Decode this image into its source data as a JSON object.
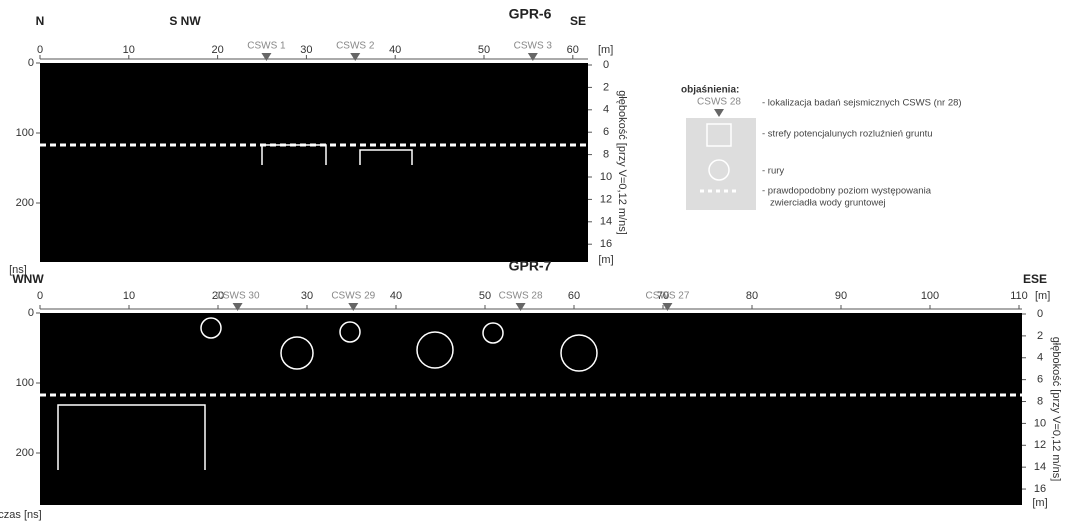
{
  "panels": [
    {
      "title": "GPR-6",
      "left_label": "N",
      "mid_label": "S NW",
      "right_label": "SE",
      "xticks": [
        0,
        10,
        20,
        30,
        40,
        50,
        60
      ],
      "x_unit": "[m]",
      "time_ticks": [
        0,
        100,
        200
      ],
      "time_unit": "[ns]",
      "depth_ticks": [
        0,
        2,
        4,
        6,
        8,
        10,
        12,
        14,
        16
      ],
      "depth_unit": "[m]",
      "depth_label": "głębokość [przy V=0,12 m/ns]",
      "csws": [
        {
          "label": "CSWS 1",
          "x": 25.5
        },
        {
          "label": "CSWS 2",
          "x": 35.5
        },
        {
          "label": "CSWS 3",
          "x": 55.5
        }
      ]
    },
    {
      "title": "GPR-7",
      "left_label": "WNW",
      "right_label": "ESE",
      "xticks": [
        0,
        10,
        20,
        30,
        40,
        50,
        60,
        70,
        80,
        90,
        100,
        110
      ],
      "x_unit": "[m]",
      "time_ticks": [
        0,
        100,
        200
      ],
      "time_unit": "czas [ns]",
      "depth_ticks": [
        0,
        2,
        4,
        6,
        8,
        10,
        12,
        14,
        16
      ],
      "depth_unit": "[m]",
      "depth_label": "głębokość [przy V=0,12 m/ns]",
      "csws": [
        {
          "label": "CSWS 30",
          "x": 22.2
        },
        {
          "label": "CSWS 29",
          "x": 35.2
        },
        {
          "label": "CSWS 28",
          "x": 54
        },
        {
          "label": "CSWS 27",
          "x": 70.5
        }
      ]
    }
  ],
  "legend": {
    "title": "objaśnienia:",
    "csws_example": "CSWS 28",
    "items": [
      "- lokalizacja badań sejsmicznych CSWS (nr 28)",
      "- strefy potencjalunych rozluźnień gruntu",
      "- rury",
      "- prawdopodobny poziom występowania",
      "zwierciadła wody gruntowej"
    ]
  }
}
